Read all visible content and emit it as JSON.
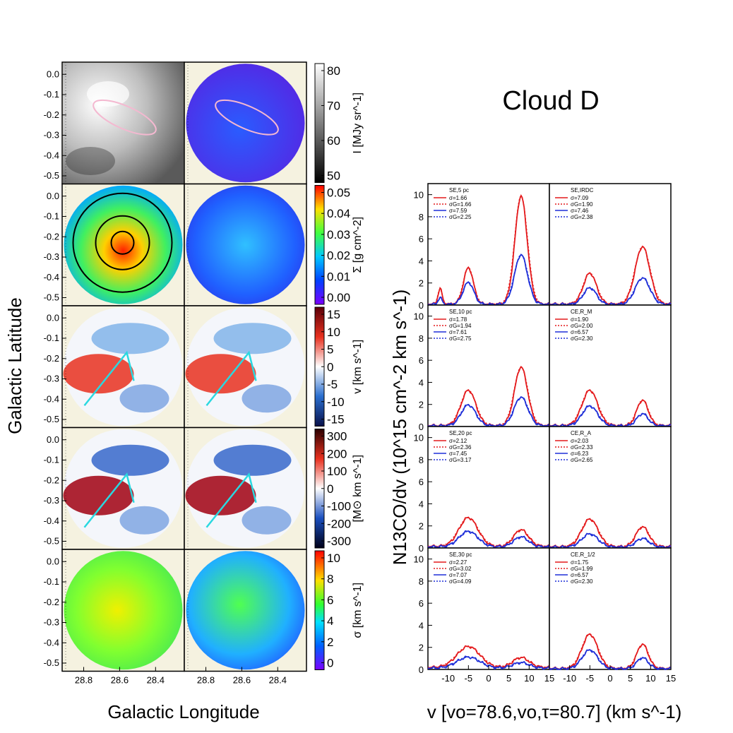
{
  "figure": {
    "title": "Cloud D",
    "map_ylabel": "Galactic Latitude",
    "map_xlabel": "Galactic Longitude",
    "spec_ylabel": "N13CO/dv (10^15 cm^-2 km s^-1)",
    "spec_xlabel": "v [vo=78.6,vo,τ=80.7] (km s^-1)"
  },
  "maps": {
    "lat_ticks": [
      "0.0",
      "-0.1",
      "-0.2",
      "-0.3",
      "-0.4",
      "-0.5"
    ],
    "lon_ticks": [
      "28.8",
      "28.6",
      "28.4"
    ],
    "rows": [
      {
        "name": "intensity",
        "colorbar_label": "I [MJy sr^-1]",
        "cbar_ticks": [
          "80",
          "70",
          "60",
          "50"
        ],
        "cmap": "gray"
      },
      {
        "name": "surface-density",
        "colorbar_label": "Σ [g cm^-2]",
        "cbar_ticks": [
          "0.05",
          "0.04",
          "0.03",
          "0.02",
          "0.01",
          "0.00"
        ],
        "cmap": "jet"
      },
      {
        "name": "velocity",
        "colorbar_label": "v [km s^-1]",
        "cbar_ticks": [
          "15",
          "10",
          "5",
          "0",
          "-5",
          "-10",
          "-15"
        ],
        "cmap": "div"
      },
      {
        "name": "momentum",
        "colorbar_label": "[M⊙ km s^-1]",
        "cbar_ticks": [
          "300",
          "200",
          "100",
          "0",
          "-100",
          "-200",
          "-300"
        ],
        "cmap": "div2"
      },
      {
        "name": "dispersion",
        "colorbar_label": "σ [km s^-1]",
        "cbar_ticks": [
          "10",
          "8",
          "6",
          "4",
          "2",
          "0"
        ],
        "cmap": "rainbow"
      }
    ]
  },
  "chart_data": {
    "type": "line",
    "xlim": [
      -15,
      15
    ],
    "ylim": [
      0,
      11
    ],
    "x_ticks": [
      "-10",
      "-5",
      "0",
      "5",
      "10",
      "15"
    ],
    "y_ticks": [
      "0",
      "2",
      "4",
      "6",
      "8",
      "10"
    ],
    "panels": [
      {
        "label": "SE,5 pc",
        "legend": [
          "σ=1.66",
          "σG=1.66",
          "σ=7.59",
          "σG=2.25"
        ],
        "red": {
          "peaks": [
            [
              -12,
              1.4,
              0.5
            ],
            [
              -5,
              3.3,
              1.2
            ],
            [
              8,
              9.8,
              1.5
            ]
          ],
          "base": 0.3
        },
        "blue": {
          "peaks": [
            [
              -12,
              0.6,
              0.5
            ],
            [
              -5,
              2.0,
              1.3
            ],
            [
              8,
              4.5,
              1.6
            ]
          ],
          "base": 0.2
        }
      },
      {
        "label": "SE,IRDC",
        "legend": [
          "σ=7.09",
          "σG=1.90",
          "σ=7.46",
          "σG=2.38"
        ],
        "red": {
          "peaks": [
            [
              -5,
              2.8,
              1.6
            ],
            [
              8,
              5.2,
              1.8
            ]
          ],
          "base": 0.3
        },
        "blue": {
          "peaks": [
            [
              -5,
              1.5,
              1.6
            ],
            [
              8,
              2.4,
              1.8
            ]
          ],
          "base": 0.2
        }
      },
      {
        "label": "SE,10 pc",
        "legend": [
          "σ=1.78",
          "σG=1.94",
          "σ=7.61",
          "σG=2.75"
        ],
        "red": {
          "peaks": [
            [
              -5,
              3.2,
              1.8
            ],
            [
              8,
              5.3,
              1.6
            ]
          ],
          "base": 0.3
        },
        "blue": {
          "peaks": [
            [
              -5,
              1.9,
              1.8
            ],
            [
              8,
              2.6,
              1.7
            ]
          ],
          "base": 0.2
        }
      },
      {
        "label": "CE,R_M",
        "legend": [
          "σ=1.90",
          "σG=2.00",
          "σ=6.57",
          "σG=2.30"
        ],
        "red": {
          "peaks": [
            [
              -5,
              3.2,
              1.9
            ],
            [
              8,
              2.3,
              1.4
            ]
          ],
          "base": 0.3
        },
        "blue": {
          "peaks": [
            [
              -5,
              1.8,
              1.9
            ],
            [
              8,
              1.1,
              1.4
            ]
          ],
          "base": 0.2
        }
      },
      {
        "label": "SE,20 pc",
        "legend": [
          "σ=2.12",
          "σG=2.36",
          "σ=7.45",
          "σG=3.17"
        ],
        "red": {
          "peaks": [
            [
              -5,
              2.6,
              2.3
            ],
            [
              8,
              1.5,
              1.8
            ]
          ],
          "base": 0.5
        },
        "blue": {
          "peaks": [
            [
              -5,
              1.4,
              2.3
            ],
            [
              8,
              0.9,
              1.8
            ]
          ],
          "base": 0.35
        }
      },
      {
        "label": "CE,R_A",
        "legend": [
          "σ=2.03",
          "σG=2.33",
          "σ=6.23",
          "σG=2.65"
        ],
        "red": {
          "peaks": [
            [
              -5,
              2.5,
              2.0
            ],
            [
              8,
              1.8,
              1.6
            ]
          ],
          "base": 0.4
        },
        "blue": {
          "peaks": [
            [
              -5,
              1.2,
              2.0
            ],
            [
              8,
              0.8,
              1.6
            ]
          ],
          "base": 0.25
        }
      },
      {
        "label": "SE,30 pc",
        "legend": [
          "σ=2.27",
          "σG=3.02",
          "σ=7.07",
          "σG=4.09"
        ],
        "red": {
          "peaks": [
            [
              -5,
              1.9,
              2.8
            ],
            [
              8,
              0.9,
              2.0
            ]
          ],
          "base": 0.6
        },
        "blue": {
          "peaks": [
            [
              -5,
              1.0,
              2.8
            ],
            [
              8,
              0.5,
              2.0
            ]
          ],
          "base": 0.4
        }
      },
      {
        "label": "CE,R_1/2",
        "legend": [
          "σ=1.75",
          "σG=1.99",
          "σ=6.57",
          "σG=2.30"
        ],
        "red": {
          "peaks": [
            [
              -5,
              3.1,
              1.9
            ],
            [
              8,
              2.2,
              1.4
            ]
          ],
          "base": 0.3
        },
        "blue": {
          "peaks": [
            [
              -5,
              1.7,
              1.9
            ],
            [
              8,
              1.0,
              1.4
            ]
          ],
          "base": 0.2
        }
      }
    ]
  }
}
